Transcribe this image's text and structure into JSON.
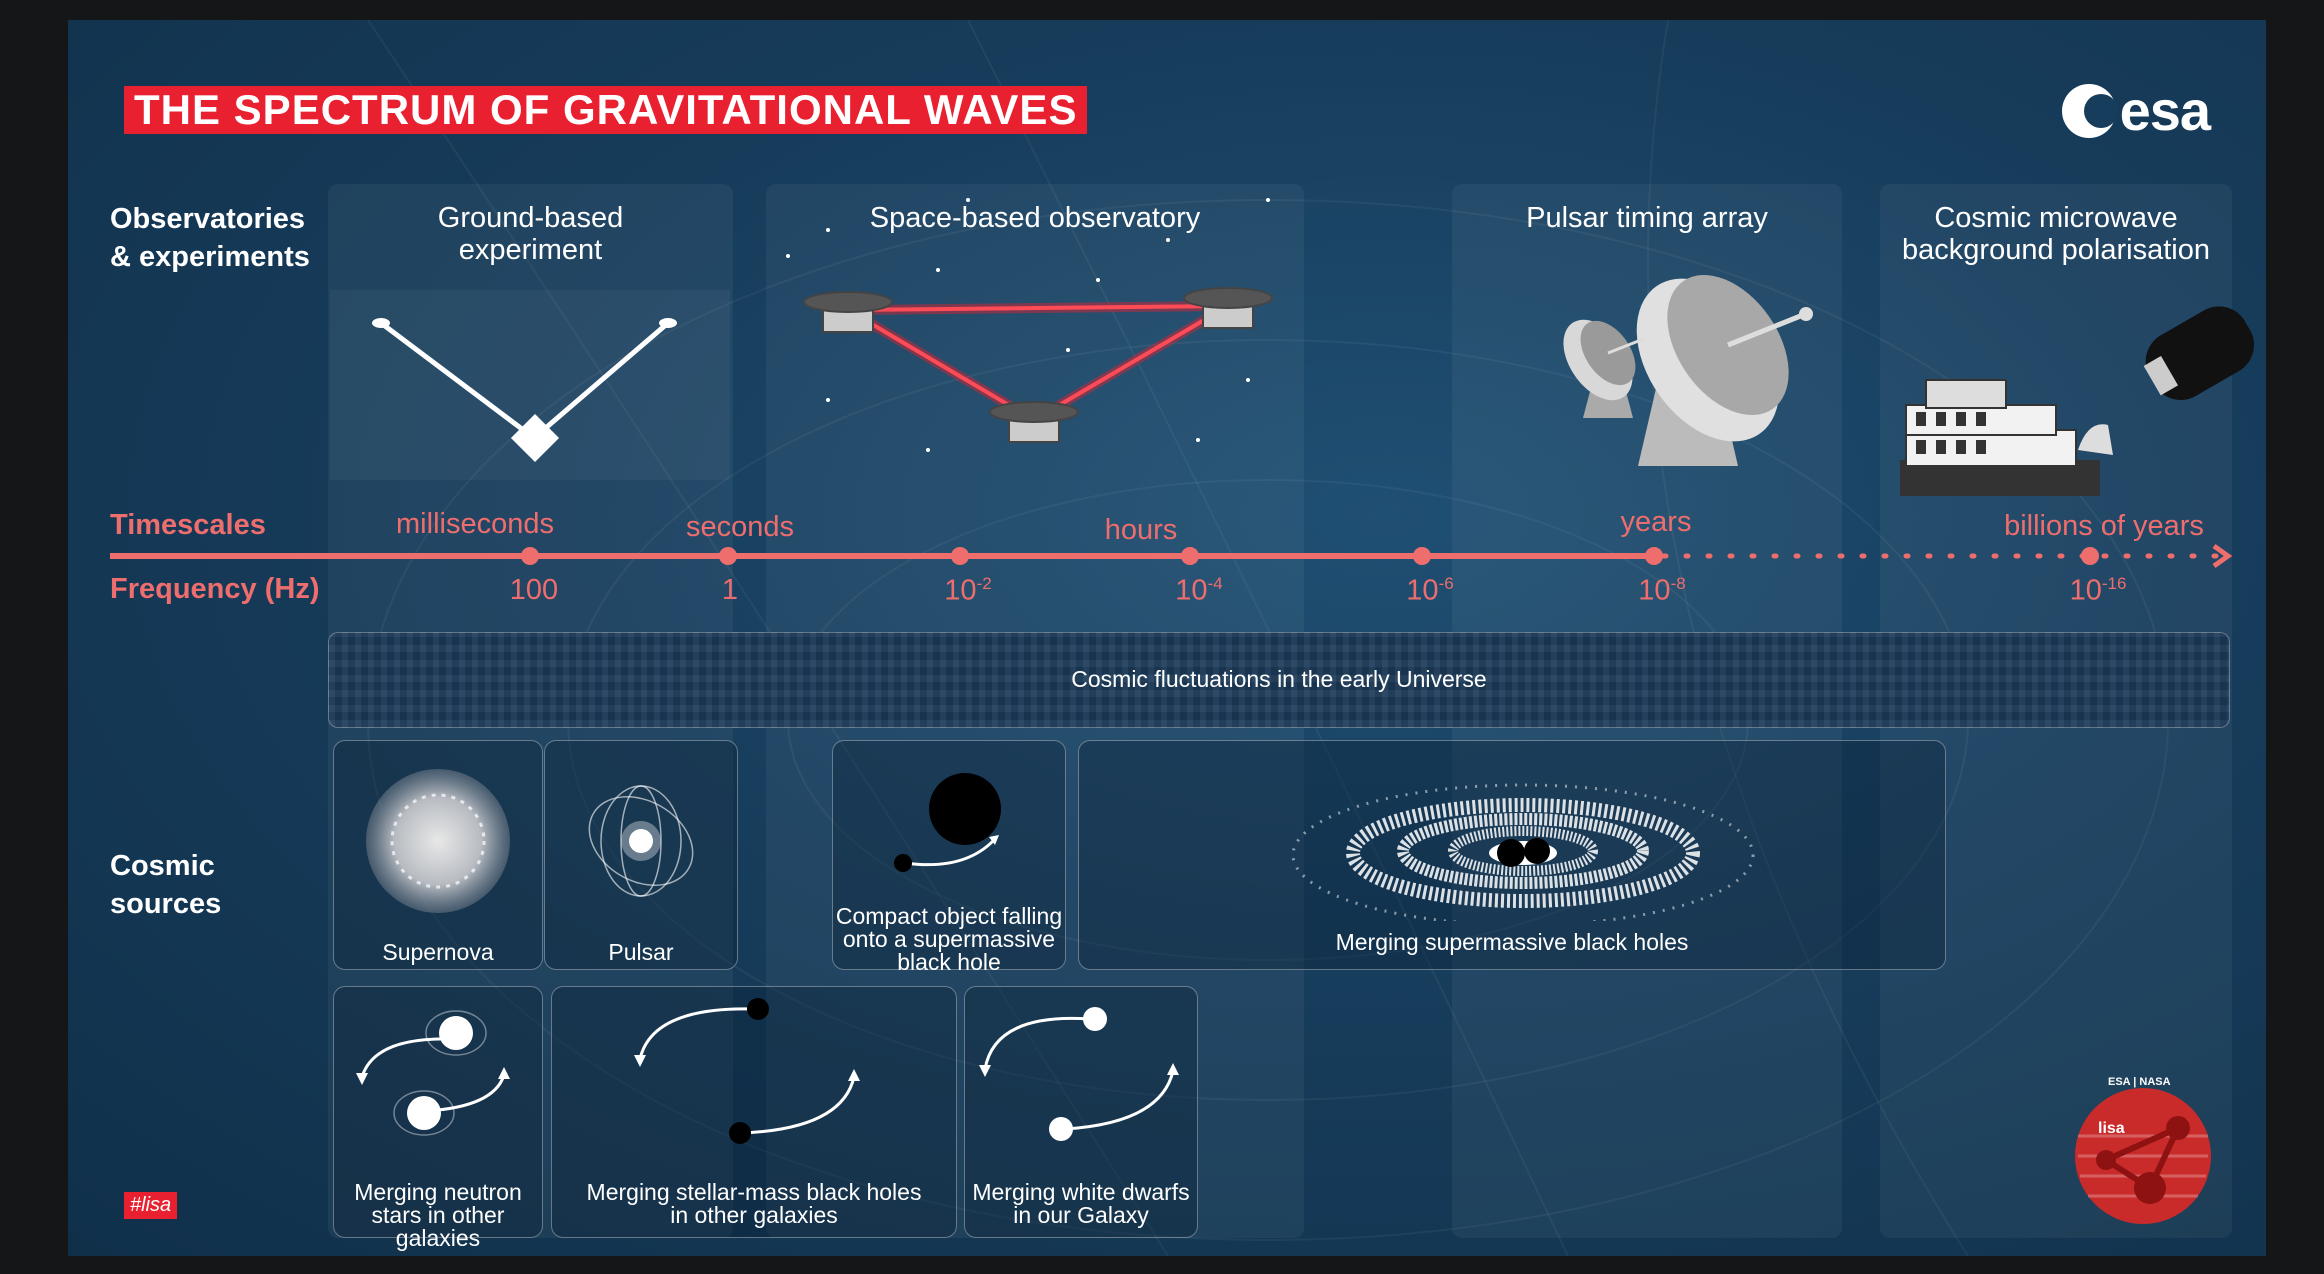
{
  "title": "THE SPECTRUM OF GRAVITATIONAL WAVES",
  "logo": {
    "text": "esa"
  },
  "row_labels": {
    "observatories_line1": "Observatories",
    "observatories_line2": "& experiments",
    "timescales": "Timescales",
    "frequency": "Frequency (Hz)",
    "cosmic_sources_line1": "Cosmic",
    "cosmic_sources_line2": "sources"
  },
  "observatories": [
    {
      "line1": "Ground-based",
      "line2": "experiment"
    },
    {
      "line1": "Space-based observatory",
      "line2": ""
    },
    {
      "line1": "Pulsar timing array",
      "line2": ""
    },
    {
      "line1": "Cosmic microwave",
      "line2": "background polarisation"
    }
  ],
  "timescales": [
    "milliseconds",
    "seconds",
    "hours",
    "years",
    "billions of years"
  ],
  "frequencies": [
    {
      "base": "100",
      "exp": ""
    },
    {
      "base": "1",
      "exp": ""
    },
    {
      "base": "10",
      "exp": "-2"
    },
    {
      "base": "10",
      "exp": "-4"
    },
    {
      "base": "10",
      "exp": "-6"
    },
    {
      "base": "10",
      "exp": "-8"
    },
    {
      "base": "10",
      "exp": "-16"
    }
  ],
  "band": "Cosmic fluctuations in the early Universe",
  "sources": {
    "supernova": "Supernova",
    "pulsar": "Pulsar",
    "compact_line1": "Compact object falling",
    "compact_line2": "onto a supermassive",
    "compact_line3": "black hole",
    "smbh": "Merging supermassive black holes",
    "ns_line1": "Merging neutron",
    "ns_line2": "stars in other galaxies",
    "sbh_line1": "Merging stellar-mass black holes",
    "sbh_line2": "in other galaxies",
    "wd_line1": "Merging white dwarfs",
    "wd_line2": "in our Galaxy"
  },
  "hashtag": "#lisa",
  "lisa_badge": {
    "top": "ESA | NASA",
    "name": "lisa"
  },
  "colors": {
    "accent_red": "#e8202f",
    "timeline_red": "#ee6d6d",
    "background": "#173d5c"
  }
}
